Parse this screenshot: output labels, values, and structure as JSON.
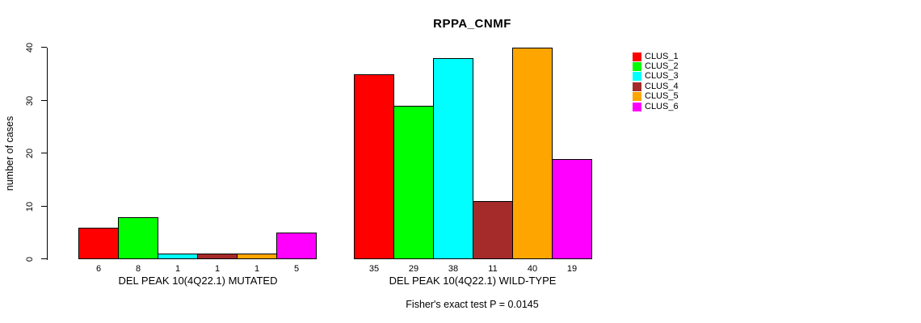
{
  "chart_data": {
    "type": "bar",
    "title": "RPPA_CNMF",
    "ylabel": "number of cases",
    "ylim": [
      0,
      40
    ],
    "yticks": [
      0,
      10,
      20,
      30,
      40
    ],
    "grid": false,
    "legend_position": "right-outside",
    "categories": [
      "DEL PEAK 10(4Q22.1) MUTATED",
      "DEL PEAK 10(4Q22.1) WILD-TYPE"
    ],
    "series": [
      {
        "name": "CLUS_1",
        "color": "#ff0000",
        "values": [
          6,
          35
        ]
      },
      {
        "name": "CLUS_2",
        "color": "#00ff00",
        "values": [
          8,
          29
        ]
      },
      {
        "name": "CLUS_3",
        "color": "#00ffff",
        "values": [
          1,
          38
        ]
      },
      {
        "name": "CLUS_4",
        "color": "#a52a2a",
        "values": [
          1,
          11
        ]
      },
      {
        "name": "CLUS_5",
        "color": "#ffa500",
        "values": [
          1,
          40
        ]
      },
      {
        "name": "CLUS_6",
        "color": "#ff00ff",
        "values": [
          5,
          19
        ]
      }
    ],
    "bar_value_labels_shown": true,
    "bar_border_color": "#000000",
    "annotation": "Fisher's exact test P = 0.0145",
    "background_color": "#ffffff"
  }
}
